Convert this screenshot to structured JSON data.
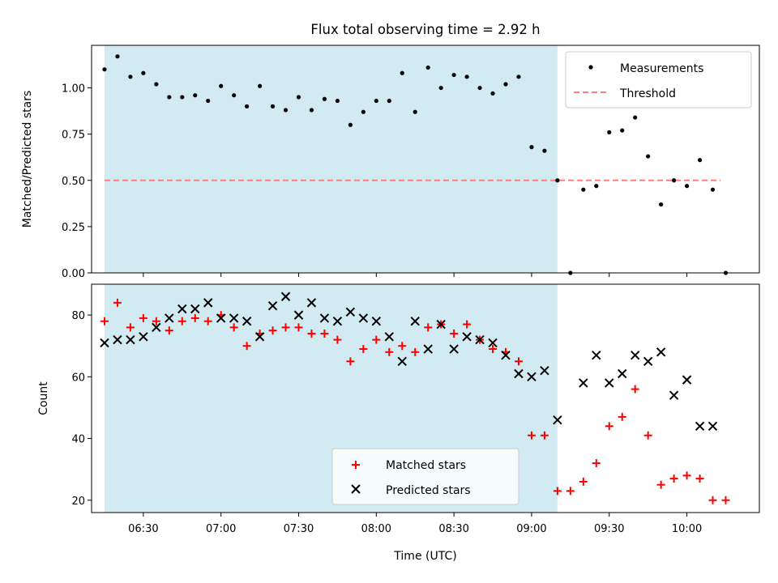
{
  "title": "Flux total observing time = 2.92 h",
  "colors": {
    "shade": "#add8e6",
    "threshold": "#ff7f7f",
    "matched": "#ff0000",
    "predicted": "#000000",
    "measurement": "#000000"
  },
  "chart_data": [
    {
      "type": "scatter",
      "ylabel": "Matched/Predicted stars",
      "xlim": [
        "06:10",
        "10:28"
      ],
      "ylim": [
        0,
        1.23
      ],
      "yticks": [
        "0.00",
        "0.25",
        "0.50",
        "0.75",
        "1.00"
      ],
      "shaded_interval": [
        "06:15",
        "09:10"
      ],
      "threshold": {
        "name": "Threshold",
        "value": 0.5,
        "x_start": "06:15",
        "x_end": "10:13",
        "style": "dashed"
      },
      "legend": {
        "position": "top-right",
        "entries": [
          "Measurements",
          "Threshold"
        ]
      },
      "series": [
        {
          "name": "Measurements",
          "marker": "dot",
          "x": [
            "06:15",
            "06:20",
            "06:25",
            "06:30",
            "06:35",
            "06:40",
            "06:45",
            "06:50",
            "06:55",
            "07:00",
            "07:05",
            "07:10",
            "07:15",
            "07:20",
            "07:25",
            "07:30",
            "07:35",
            "07:40",
            "07:45",
            "07:50",
            "07:55",
            "08:00",
            "08:05",
            "08:10",
            "08:15",
            "08:20",
            "08:25",
            "08:30",
            "08:35",
            "08:40",
            "08:45",
            "08:50",
            "08:55",
            "09:00",
            "09:05",
            "09:10",
            "09:15",
            "09:20",
            "09:25",
            "09:30",
            "09:35",
            "09:40",
            "09:45",
            "09:50",
            "09:55",
            "10:00",
            "10:05",
            "10:10",
            "10:15"
          ],
          "y": [
            1.1,
            1.17,
            1.06,
            1.08,
            1.02,
            0.95,
            0.95,
            0.96,
            0.93,
            1.01,
            0.96,
            0.9,
            1.01,
            0.9,
            0.88,
            0.95,
            0.88,
            0.94,
            0.93,
            0.8,
            0.87,
            0.93,
            0.93,
            1.08,
            0.87,
            1.11,
            1.0,
            1.07,
            1.06,
            1.0,
            0.97,
            1.02,
            1.06,
            0.68,
            0.66,
            0.5,
            0.0,
            0.45,
            0.47,
            0.76,
            0.77,
            0.84,
            0.63,
            0.37,
            0.5,
            0.47,
            0.61,
            0.45,
            0.0
          ]
        }
      ]
    },
    {
      "type": "scatter",
      "xlabel": "Time (UTC)",
      "ylabel": "Count",
      "xlim": [
        "06:10",
        "10:28"
      ],
      "ylim": [
        16,
        90
      ],
      "yticks": [
        "20",
        "40",
        "60",
        "80"
      ],
      "xticks": [
        "06:30",
        "07:00",
        "07:30",
        "08:00",
        "08:30",
        "09:00",
        "09:30",
        "10:00"
      ],
      "shaded_interval": [
        "06:15",
        "09:10"
      ],
      "legend": {
        "position": "lower-center",
        "entries": [
          "Matched stars",
          "Predicted stars"
        ]
      },
      "x": [
        "06:15",
        "06:20",
        "06:25",
        "06:30",
        "06:35",
        "06:40",
        "06:45",
        "06:50",
        "06:55",
        "07:00",
        "07:05",
        "07:10",
        "07:15",
        "07:20",
        "07:25",
        "07:30",
        "07:35",
        "07:40",
        "07:45",
        "07:50",
        "07:55",
        "08:00",
        "08:05",
        "08:10",
        "08:15",
        "08:20",
        "08:25",
        "08:30",
        "08:35",
        "08:40",
        "08:45",
        "08:50",
        "08:55",
        "09:00",
        "09:05",
        "09:10",
        "09:15",
        "09:20",
        "09:25",
        "09:30",
        "09:35",
        "09:40",
        "09:45",
        "09:50",
        "09:55",
        "10:00",
        "10:05",
        "10:10",
        "10:15"
      ],
      "series": [
        {
          "name": "Matched stars",
          "marker": "plus",
          "values": [
            78,
            84,
            76,
            79,
            78,
            75,
            78,
            79,
            78,
            80,
            76,
            70,
            74,
            75,
            76,
            76,
            74,
            74,
            72,
            65,
            69,
            72,
            68,
            70,
            68,
            76,
            77,
            74,
            77,
            72,
            69,
            68,
            65,
            41,
            41,
            23,
            23,
            26,
            32,
            44,
            47,
            56,
            41,
            25,
            27,
            28,
            27,
            20,
            20
          ]
        },
        {
          "name": "Predicted stars",
          "marker": "x",
          "values": [
            71,
            72,
            72,
            73,
            76,
            79,
            82,
            82,
            84,
            79,
            79,
            78,
            73,
            83,
            86,
            80,
            84,
            79,
            78,
            81,
            79,
            78,
            73,
            65,
            78,
            69,
            77,
            69,
            73,
            72,
            71,
            67,
            61,
            60,
            62,
            46,
            null,
            58,
            67,
            58,
            61,
            67,
            65,
            68,
            54,
            59,
            44,
            44,
            null
          ]
        }
      ]
    }
  ]
}
